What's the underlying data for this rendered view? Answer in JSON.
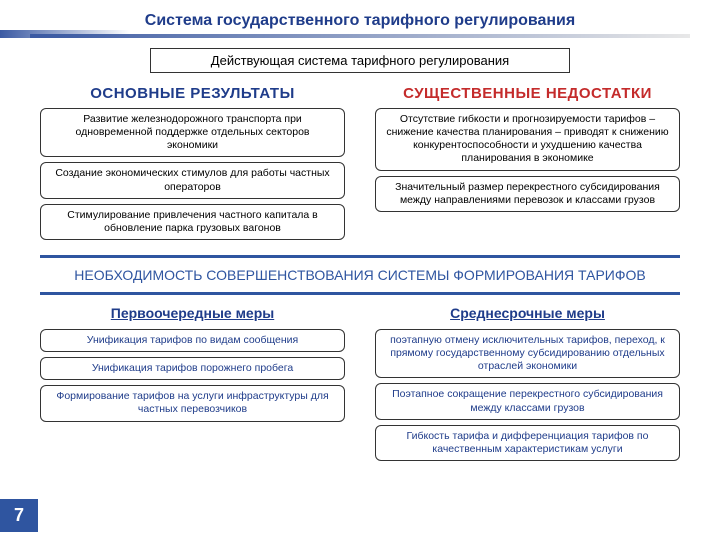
{
  "colors": {
    "title_text": "#1f3c8a",
    "underline_gradient_from": "#3b5aa3",
    "underline_gradient_to": "#e8e8e8",
    "left_heading": "#1f3c8a",
    "right_heading": "#c42b2b",
    "band_border": "#2f55a0",
    "band_text": "#2f55a0",
    "section_heading": "#1f3c8a",
    "priority_box_text": "#1f3c8a",
    "midterm_box_text": "#1f3c8a",
    "page_bg": "#2f55a0",
    "box_border": "#333333"
  },
  "title": "Система государственного тарифного регулирования",
  "subtitle": "Действующая система тарифного регулирования",
  "left": {
    "heading": "ОСНОВНЫЕ РЕЗУЛЬТАТЫ",
    "items": [
      "Развитие железнодорожного транспорта при одновременной поддержке отдельных секторов экономики",
      "Создание экономических стимулов для работы частных операторов",
      "Стимулирование привлечения частного капитала в обновление парка грузовых вагонов"
    ]
  },
  "right": {
    "heading": "СУЩЕСТВЕННЫЕ НЕДОСТАТКИ",
    "items": [
      "Отсутствие гибкости и прогнозируемости тарифов – снижение качества планирования – приводят к снижению конкурентоспособности и ухудшению качества планирования в экономике",
      "Значительный размер перекрестного субсидирования между направлениями перевозок и классами грузов"
    ]
  },
  "necessity": "НЕОБХОДИМОСТЬ СОВЕРШЕНСТВОВАНИЯ СИСТЕМЫ ФОРМИРОВАНИЯ ТАРИФОВ",
  "priority": {
    "heading": "Первоочередные меры",
    "items": [
      "Унификация тарифов по видам сообщения",
      "Унификация тарифов порожнего пробега",
      "Формирование тарифов на услуги инфраструктуры для частных перевозчиков"
    ]
  },
  "midterm": {
    "heading": "Среднесрочные меры",
    "items": [
      "поэтапную отмену исключительных тарифов, переход, к прямому государственному субсидированию отдельных отраслей экономики",
      "Поэтапное сокращение перекрестного субсидирования между классами грузов",
      "Гибкость тарифа и дифференциация тарифов по качественным характеристикам услуги"
    ]
  },
  "page_number": "7"
}
